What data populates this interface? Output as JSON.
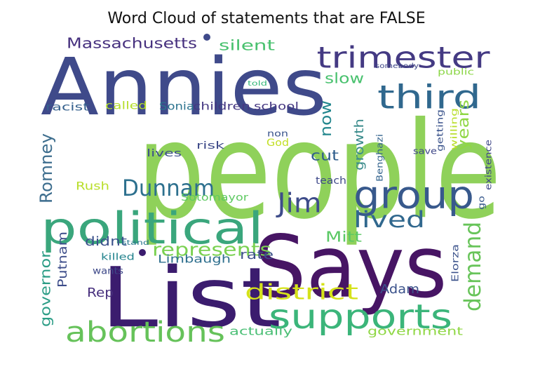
{
  "chart_data": {
    "type": "wordcloud",
    "title": "Word Cloud of statements that are FALSE",
    "colormap": "viridis",
    "background": "#ffffff",
    "words": [
      {
        "text": "people",
        "color": "#8fd15a",
        "orientation": "horizontal"
      },
      {
        "text": "Annies",
        "color": "#3f4a8a",
        "orientation": "horizontal"
      },
      {
        "text": "List",
        "color": "#3b1c6e",
        "orientation": "horizontal"
      },
      {
        "text": "Says",
        "color": "#471564",
        "orientation": "horizontal"
      },
      {
        "text": "political",
        "color": "#3aa67c",
        "orientation": "horizontal"
      },
      {
        "text": "group",
        "color": "#38598c",
        "orientation": "horizontal"
      },
      {
        "text": "supports",
        "color": "#3bb57a",
        "orientation": "horizontal"
      },
      {
        "text": "trimester",
        "color": "#443a83",
        "orientation": "horizontal"
      },
      {
        "text": "third",
        "color": "#30688e",
        "orientation": "horizontal"
      },
      {
        "text": "abortions",
        "color": "#66c25a",
        "orientation": "horizontal"
      },
      {
        "text": "Dunnam",
        "color": "#2d708e",
        "orientation": "horizontal"
      },
      {
        "text": "Jim",
        "color": "#3e4c8a",
        "orientation": "horizontal"
      },
      {
        "text": "lived",
        "color": "#31688e",
        "orientation": "horizontal"
      },
      {
        "text": "demand",
        "color": "#68c45a",
        "orientation": "vertical"
      },
      {
        "text": "district",
        "color": "#d5e21a",
        "orientation": "horizontal"
      },
      {
        "text": "represents",
        "color": "#7ad151",
        "orientation": "horizontal"
      },
      {
        "text": "Romney",
        "color": "#3e6e8e",
        "orientation": "vertical"
      },
      {
        "text": "Massachusetts",
        "color": "#46307e",
        "orientation": "horizontal"
      },
      {
        "text": "silent",
        "color": "#48c16e",
        "orientation": "horizontal"
      },
      {
        "text": "years",
        "color": "#8fd744",
        "orientation": "vertical"
      },
      {
        "text": "now",
        "color": "#24878e",
        "orientation": "vertical"
      },
      {
        "text": "slow",
        "color": "#48c16e",
        "orientation": "horizontal"
      },
      {
        "text": "growth",
        "color": "#3b8c8c",
        "orientation": "vertical"
      },
      {
        "text": "cut",
        "color": "#2e5d8c",
        "orientation": "horizontal"
      },
      {
        "text": "Mitt",
        "color": "#5ac864",
        "orientation": "horizontal"
      },
      {
        "text": "rate",
        "color": "#3c508b",
        "orientation": "horizontal"
      },
      {
        "text": "Adam",
        "color": "#3b528b",
        "orientation": "horizontal"
      },
      {
        "text": "governor",
        "color": "#2c9d86",
        "orientation": "vertical"
      },
      {
        "text": "Putnam",
        "color": "#3d4d8a",
        "orientation": "vertical"
      },
      {
        "text": "didnt",
        "color": "#3b528b",
        "orientation": "horizontal"
      },
      {
        "text": "Rep",
        "color": "#472f7d",
        "orientation": "horizontal"
      },
      {
        "text": "government",
        "color": "#8fd744",
        "orientation": "horizontal"
      },
      {
        "text": "actually",
        "color": "#4bbf76",
        "orientation": "horizontal"
      },
      {
        "text": "Limbaugh",
        "color": "#2e6f8e",
        "orientation": "horizontal"
      },
      {
        "text": "Rush",
        "color": "#b8de29",
        "orientation": "horizontal"
      },
      {
        "text": "Sotomayor",
        "color": "#5ec962",
        "orientation": "horizontal"
      },
      {
        "text": "racist",
        "color": "#35608d",
        "orientation": "horizontal"
      },
      {
        "text": "called",
        "color": "#b5de2b",
        "orientation": "horizontal"
      },
      {
        "text": "Sonia",
        "color": "#2b738e",
        "orientation": "horizontal"
      },
      {
        "text": "children",
        "color": "#453882",
        "orientation": "horizontal"
      },
      {
        "text": "school",
        "color": "#453781",
        "orientation": "horizontal"
      },
      {
        "text": "lives",
        "color": "#3c4f8a",
        "orientation": "horizontal"
      },
      {
        "text": "risk",
        "color": "#3e4a89",
        "orientation": "horizontal"
      },
      {
        "text": "God",
        "color": "#c2df23",
        "orientation": "horizontal"
      },
      {
        "text": "non",
        "color": "#3a548c",
        "orientation": "horizontal"
      },
      {
        "text": "Benghazi",
        "color": "#33638d",
        "orientation": "vertical"
      },
      {
        "text": "getting",
        "color": "#3a538b",
        "orientation": "vertical"
      },
      {
        "text": "willing",
        "color": "#b8de29",
        "orientation": "vertical"
      },
      {
        "text": "save",
        "color": "#3f4788",
        "orientation": "horizontal"
      },
      {
        "text": "existence",
        "color": "#3f4788",
        "orientation": "vertical"
      },
      {
        "text": "teach",
        "color": "#3e4989",
        "orientation": "horizontal"
      },
      {
        "text": "Elorza",
        "color": "#3b528b",
        "orientation": "vertical"
      },
      {
        "text": "go",
        "color": "#38598c",
        "orientation": "vertical"
      },
      {
        "text": "public",
        "color": "#8bd646",
        "orientation": "horizontal"
      },
      {
        "text": "somebody",
        "color": "#3f4788",
        "orientation": "horizontal"
      },
      {
        "text": "told",
        "color": "#35b779",
        "orientation": "horizontal"
      },
      {
        "text": "stand",
        "color": "#2a788e",
        "orientation": "horizontal"
      },
      {
        "text": "killed",
        "color": "#25848e",
        "orientation": "horizontal"
      },
      {
        "text": "wants",
        "color": "#3e4989",
        "orientation": "horizontal"
      }
    ]
  }
}
